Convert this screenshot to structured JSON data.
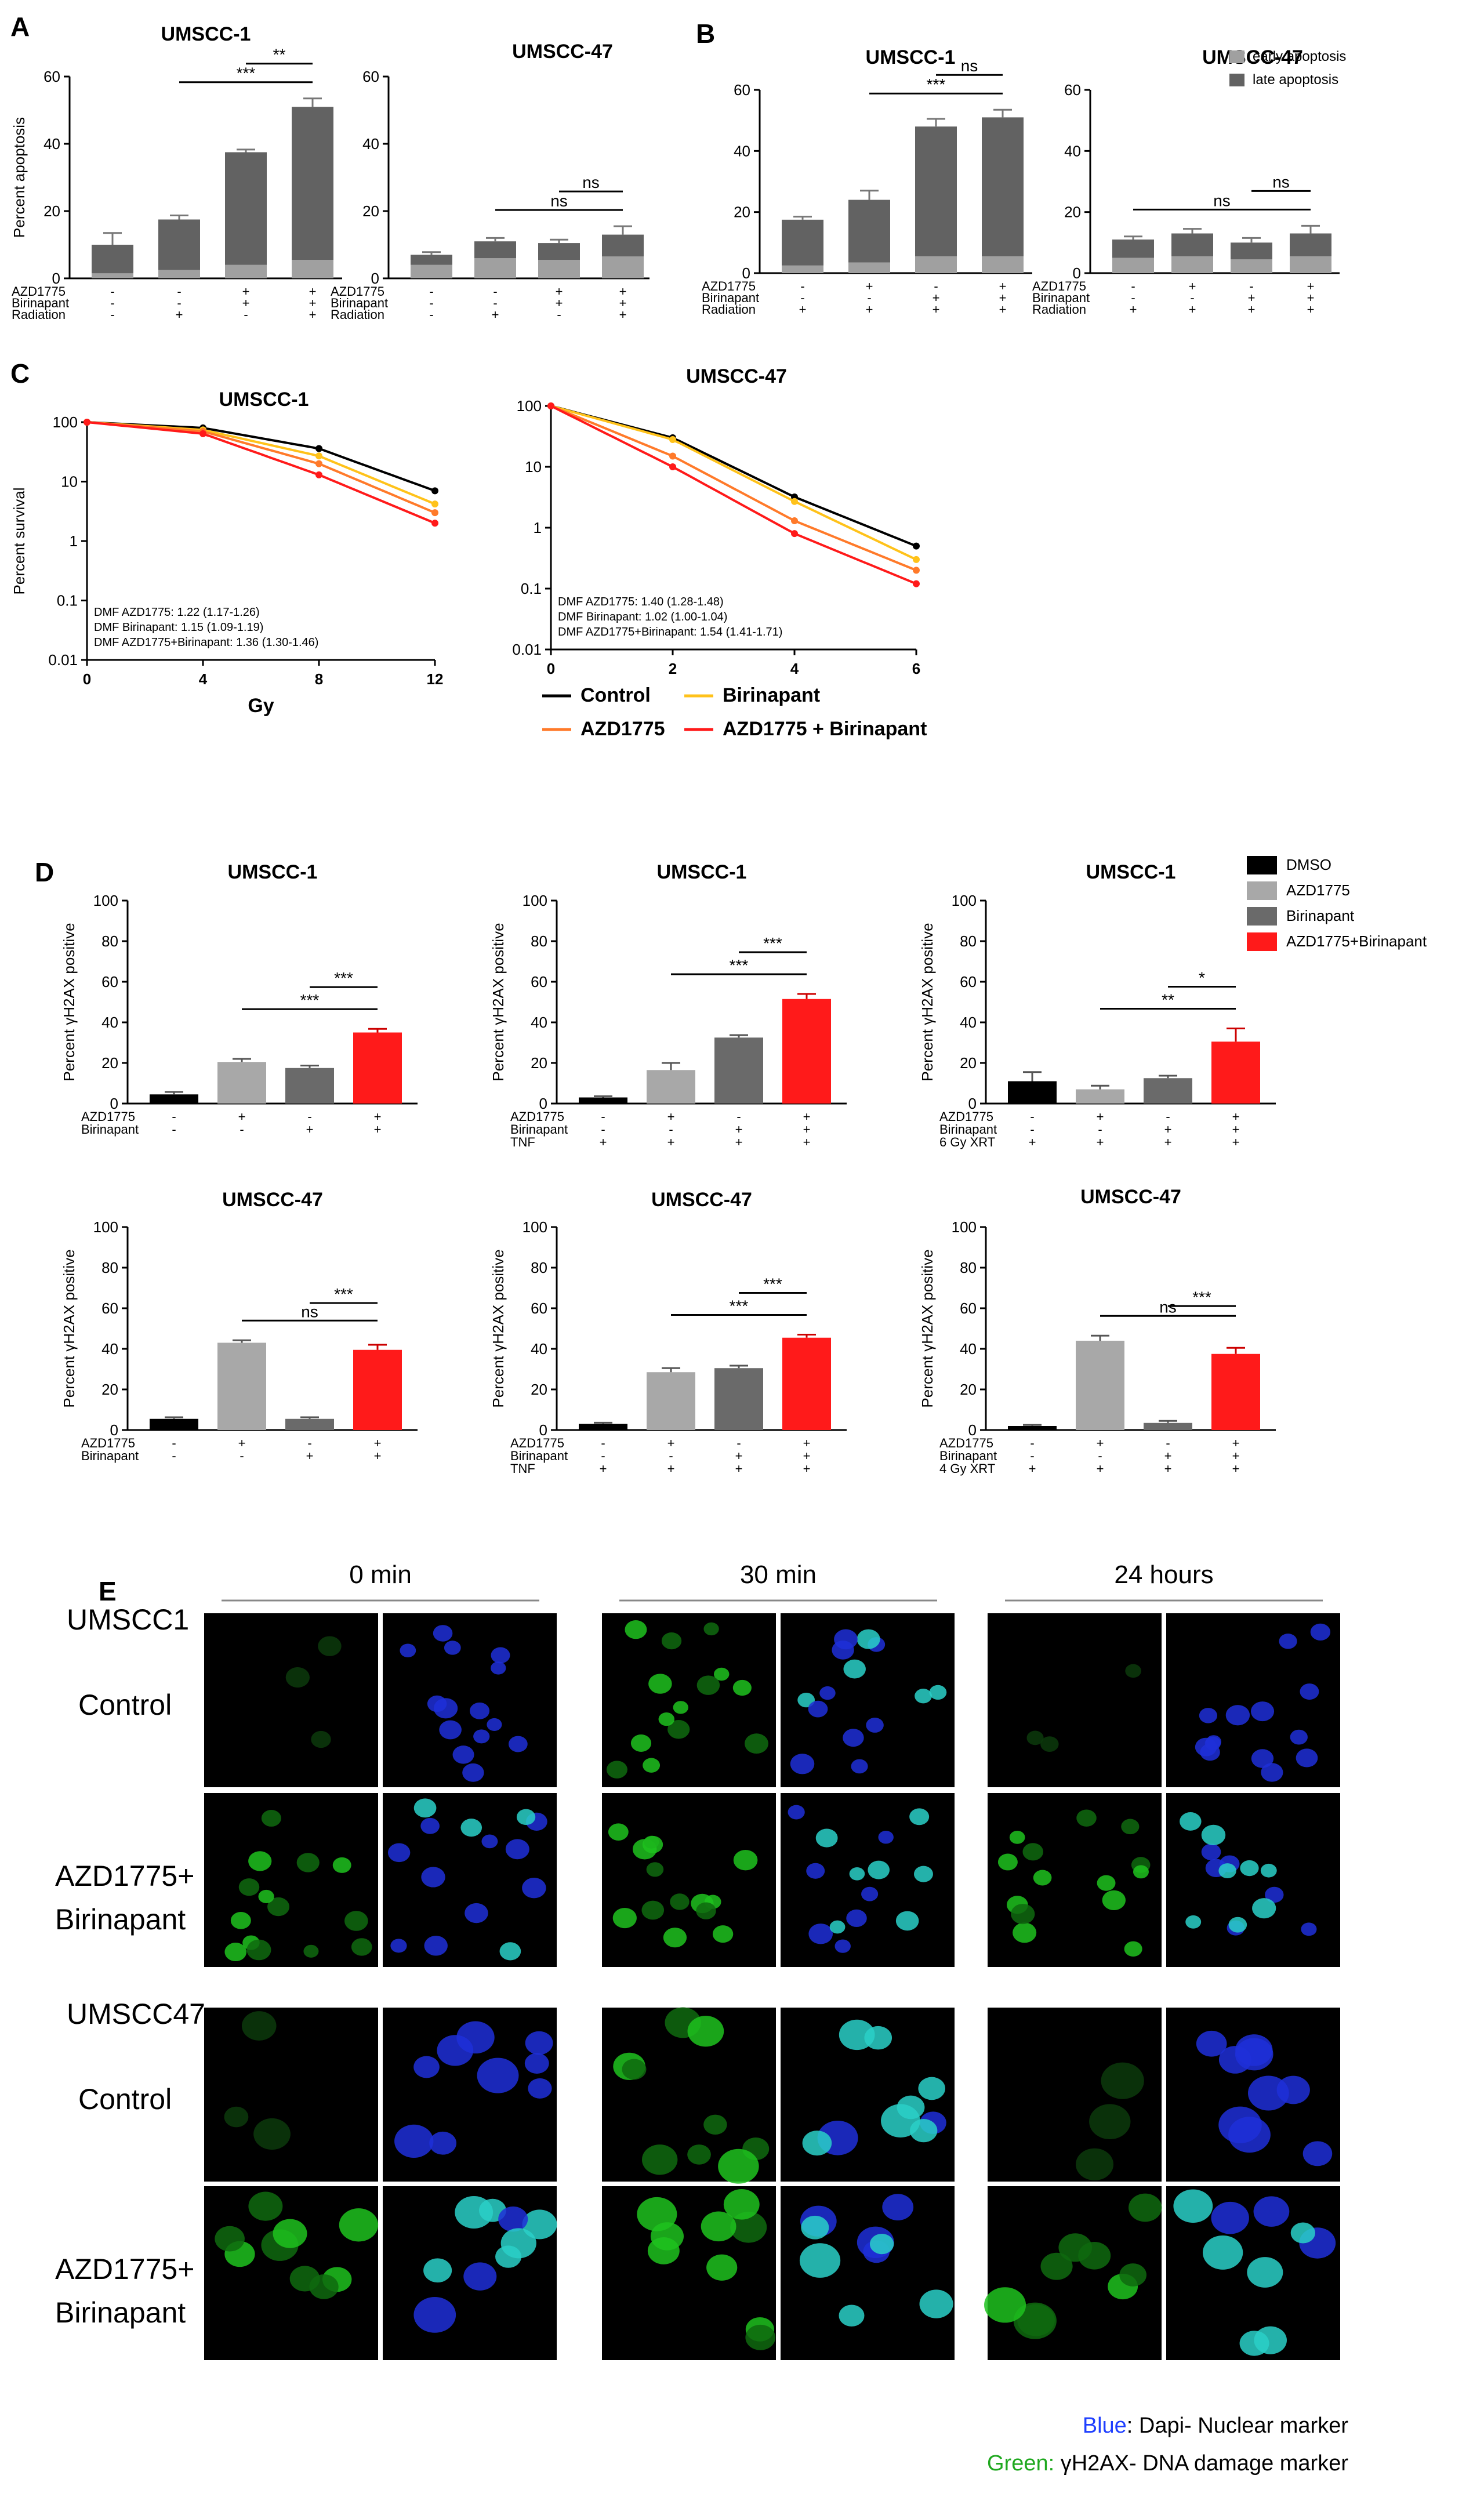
{
  "panels": {
    "A": "A",
    "B": "B",
    "C": "C",
    "D": "D",
    "E": "E"
  },
  "colors": {
    "early": "#a0a0a0",
    "late": "#626262",
    "dmso": "#000000",
    "azd": "#a8a8a8",
    "bir": "#6a6a6a",
    "combo": "#ff1a1a",
    "control_line": "#000000",
    "azd_line": "#ff7a2a",
    "bir_line": "#ffc21a",
    "combo_line": "#ff1a1a",
    "blue_text": "#1f3fff",
    "green_text": "#1fa81f"
  },
  "chart_data": [
    {
      "id": "A1",
      "type": "bar",
      "stacked": true,
      "title": "UMSCC-1",
      "ylabel": "Percent apoptosis",
      "ylim": [
        0,
        60
      ],
      "yticks": [
        0,
        20,
        40,
        60
      ],
      "treatments": [
        {
          "name": "AZD1775",
          "values": [
            "-",
            "-",
            "+",
            "+"
          ]
        },
        {
          "name": "Birinapant",
          "values": [
            "-",
            "-",
            "+",
            "+"
          ]
        },
        {
          "name": "Radiation",
          "values": [
            "-",
            "+",
            "-",
            "+"
          ]
        }
      ],
      "series": [
        {
          "name": "early apoptosis",
          "values": [
            1.5,
            2.5,
            4,
            5.5
          ]
        },
        {
          "name": "late apoptosis",
          "values": [
            8.5,
            15,
            33.5,
            45.5
          ]
        }
      ],
      "errors": [
        3.5,
        1.2,
        0.8,
        2.5
      ],
      "significance": [
        {
          "label": "***",
          "from": 1,
          "to": 3
        },
        {
          "label": "**",
          "from": 2,
          "to": 3
        }
      ]
    },
    {
      "id": "A2",
      "type": "bar",
      "stacked": true,
      "title": "UMSCC-47",
      "ylabel": "",
      "ylim": [
        0,
        60
      ],
      "yticks": [
        0,
        20,
        40,
        60
      ],
      "treatments": [
        {
          "name": "AZD1775",
          "values": [
            "-",
            "-",
            "+",
            "+"
          ]
        },
        {
          "name": "Birinapant",
          "values": [
            "-",
            "-",
            "+",
            "+"
          ]
        },
        {
          "name": "Radiation",
          "values": [
            "-",
            "+",
            "-",
            "+"
          ]
        }
      ],
      "series": [
        {
          "name": "early apoptosis",
          "values": [
            4,
            6,
            5.5,
            6.5
          ]
        },
        {
          "name": "late apoptosis",
          "values": [
            3,
            5,
            5,
            6.5
          ]
        }
      ],
      "errors": [
        0.8,
        1.0,
        1.0,
        2.5
      ],
      "significance": [
        {
          "label": "ns",
          "from": 1,
          "to": 3
        },
        {
          "label": "ns",
          "from": 2,
          "to": 3
        }
      ]
    },
    {
      "id": "B1",
      "type": "bar",
      "stacked": true,
      "title": "UMSCC-1",
      "ylabel": "",
      "ylim": [
        0,
        60
      ],
      "yticks": [
        0,
        20,
        40,
        60
      ],
      "treatments": [
        {
          "name": "AZD1775",
          "values": [
            "-",
            "+",
            "-",
            "+"
          ]
        },
        {
          "name": "Birinapant",
          "values": [
            "-",
            "-",
            "+",
            "+"
          ]
        },
        {
          "name": "Radiation",
          "values": [
            "+",
            "+",
            "+",
            "+"
          ]
        }
      ],
      "series": [
        {
          "name": "early apoptosis",
          "values": [
            2.5,
            3.5,
            5.5,
            5.5
          ]
        },
        {
          "name": "late apoptosis",
          "values": [
            15,
            20.5,
            42.5,
            45.5
          ]
        }
      ],
      "errors": [
        1.0,
        3.0,
        2.5,
        2.5
      ],
      "significance": [
        {
          "label": "***",
          "from": 1,
          "to": 3
        },
        {
          "label": "ns",
          "from": 2,
          "to": 3
        }
      ]
    },
    {
      "id": "B2",
      "type": "bar",
      "stacked": true,
      "title": "UMSCC-47",
      "ylabel": "",
      "ylim": [
        0,
        60
      ],
      "yticks": [
        0,
        20,
        40,
        60
      ],
      "legend": [
        "early apoptosis",
        "late apoptosis"
      ],
      "treatments": [
        {
          "name": "AZD1775",
          "values": [
            "-",
            "+",
            "-",
            "+"
          ]
        },
        {
          "name": "Birinapant",
          "values": [
            "-",
            "-",
            "+",
            "+"
          ]
        },
        {
          "name": "Radiation",
          "values": [
            "+",
            "+",
            "+",
            "+"
          ]
        }
      ],
      "series": [
        {
          "name": "early apoptosis",
          "values": [
            5,
            5.5,
            4.5,
            5.5
          ]
        },
        {
          "name": "late apoptosis",
          "values": [
            6,
            7.5,
            5.5,
            7.5
          ]
        }
      ],
      "errors": [
        1.0,
        1.5,
        1.5,
        2.5
      ],
      "significance": [
        {
          "label": "ns",
          "from": 0,
          "to": 3
        },
        {
          "label": "ns",
          "from": 2,
          "to": 3
        }
      ]
    },
    {
      "id": "C1",
      "type": "line",
      "title": "UMSCC-1",
      "xlabel": "Gy",
      "ylabel": "Percent survival",
      "log_y": true,
      "xlim": [
        0,
        12
      ],
      "ylim": [
        0.01,
        100
      ],
      "xticks": [
        0,
        4,
        8,
        12
      ],
      "yticks": [
        100,
        10,
        1,
        0.1,
        0.01
      ],
      "x": [
        0,
        4,
        8,
        12
      ],
      "series": [
        {
          "name": "Control",
          "values": [
            100,
            80,
            36,
            7
          ]
        },
        {
          "name": "Birinapant",
          "values": [
            100,
            74,
            27,
            4.2
          ]
        },
        {
          "name": "AZD1775",
          "values": [
            100,
            70,
            20,
            3
          ]
        },
        {
          "name": "AZD1775 + Birinapant",
          "values": [
            100,
            64,
            13,
            2
          ]
        }
      ],
      "annotations": [
        "DMF AZD1775: 1.22 (1.17-1.26)",
        "DMF Birinapant: 1.15 (1.09-1.19)",
        "DMF AZD1775+Birinapant: 1.36 (1.30-1.46)"
      ]
    },
    {
      "id": "C2",
      "type": "line",
      "title": "UMSCC-47",
      "xlabel": "",
      "ylabel": "",
      "log_y": true,
      "xlim": [
        0,
        6
      ],
      "ylim": [
        0.01,
        100
      ],
      "xticks": [
        0,
        2,
        4,
        6
      ],
      "yticks": [
        100,
        10,
        1,
        0.1,
        0.01
      ],
      "x": [
        0,
        2,
        4,
        6
      ],
      "series": [
        {
          "name": "Control",
          "values": [
            100,
            30,
            3.2,
            0.5
          ]
        },
        {
          "name": "Birinapant",
          "values": [
            100,
            28,
            2.7,
            0.3
          ]
        },
        {
          "name": "AZD1775",
          "values": [
            100,
            15,
            1.3,
            0.2
          ]
        },
        {
          "name": "AZD1775 + Birinapant",
          "values": [
            100,
            10,
            0.8,
            0.12
          ]
        }
      ],
      "annotations": [
        "DMF AZD1775: 1.40 (1.28-1.48)",
        "DMF Birinapant: 1.02 (1.00-1.04)",
        "DMF AZD1775+Birinapant: 1.54 (1.41-1.71)"
      ],
      "legend": [
        "Control",
        "Birinapant",
        "AZD1775",
        "AZD1775 + Birinapant"
      ]
    },
    {
      "id": "D1",
      "type": "bar",
      "title": "UMSCC-1",
      "ylabel": "Percent γH2AX positive",
      "ylim": [
        0,
        100
      ],
      "yticks": [
        0,
        20,
        40,
        60,
        80,
        100
      ],
      "categories": [
        "DMSO",
        "AZD1775",
        "Birinapant",
        "AZD1775+Birinapant"
      ],
      "values": [
        4.5,
        20.5,
        17.5,
        35
      ],
      "errors": [
        1.2,
        1.5,
        1.2,
        1.8
      ],
      "treatments": [
        {
          "name": "AZD1775",
          "values": [
            "-",
            "+",
            "-",
            "+"
          ]
        },
        {
          "name": "Birinapant",
          "values": [
            "-",
            "-",
            "+",
            "+"
          ]
        }
      ],
      "significance": [
        {
          "label": "***",
          "from": 1,
          "to": 3
        },
        {
          "label": "***",
          "from": 2,
          "to": 3
        }
      ]
    },
    {
      "id": "D2",
      "type": "bar",
      "title": "UMSCC-1",
      "ylabel": "Percent γH2AX positive",
      "ylim": [
        0,
        100
      ],
      "yticks": [
        0,
        20,
        40,
        60,
        80,
        100
      ],
      "categories": [
        "DMSO",
        "AZD1775",
        "Birinapant",
        "AZD1775+Birinapant"
      ],
      "values": [
        3,
        16.5,
        32.5,
        51.5
      ],
      "errors": [
        0.6,
        3.5,
        1.2,
        2.5
      ],
      "treatments": [
        {
          "name": "AZD1775",
          "values": [
            "-",
            "+",
            "-",
            "+"
          ]
        },
        {
          "name": "Birinapant",
          "values": [
            "-",
            "-",
            "+",
            "+"
          ]
        },
        {
          "name": "TNF",
          "values": [
            "+",
            "+",
            "+",
            "+"
          ]
        }
      ],
      "significance": [
        {
          "label": "***",
          "from": 1,
          "to": 3
        },
        {
          "label": "***",
          "from": 2,
          "to": 3
        }
      ]
    },
    {
      "id": "D3",
      "type": "bar",
      "title": "UMSCC-1",
      "ylabel": "Percent γH2AX positive",
      "ylim": [
        0,
        100
      ],
      "yticks": [
        0,
        20,
        40,
        60,
        80,
        100
      ],
      "categories": [
        "DMSO",
        "AZD1775",
        "Birinapant",
        "AZD1775+Birinapant"
      ],
      "values": [
        11,
        7,
        12.5,
        30.5
      ],
      "errors": [
        4.5,
        1.8,
        1.2,
        6.5
      ],
      "treatments": [
        {
          "name": "AZD1775",
          "values": [
            "-",
            "+",
            "-",
            "+"
          ]
        },
        {
          "name": "Birinapant",
          "values": [
            "-",
            "-",
            "+",
            "+"
          ]
        },
        {
          "name": "6 Gy XRT",
          "values": [
            "+",
            "+",
            "+",
            "+"
          ]
        }
      ],
      "legend": [
        "DMSO",
        "AZD1775",
        "Birinapant",
        "AZD1775+Birinapant"
      ],
      "significance": [
        {
          "label": "**",
          "from": 1,
          "to": 3
        },
        {
          "label": "*",
          "from": 2,
          "to": 3
        }
      ]
    },
    {
      "id": "D4",
      "type": "bar",
      "title": "UMSCC-47",
      "ylabel": "Percent γH2AX positive",
      "ylim": [
        0,
        100
      ],
      "yticks": [
        0,
        20,
        40,
        60,
        80,
        100
      ],
      "categories": [
        "DMSO",
        "AZD1775",
        "Birinapant",
        "AZD1775+Birinapant"
      ],
      "values": [
        5.5,
        43,
        5.5,
        39.5
      ],
      "errors": [
        0.8,
        1.2,
        0.8,
        2.5
      ],
      "treatments": [
        {
          "name": "AZD1775",
          "values": [
            "-",
            "+",
            "-",
            "+"
          ]
        },
        {
          "name": "Birinapant",
          "values": [
            "-",
            "-",
            "+",
            "+"
          ]
        }
      ],
      "significance": [
        {
          "label": "ns",
          "from": 1,
          "to": 3
        },
        {
          "label": "***",
          "from": 2,
          "to": 3
        }
      ]
    },
    {
      "id": "D5",
      "type": "bar",
      "title": "UMSCC-47",
      "ylabel": "Percent γH2AX positive",
      "ylim": [
        0,
        100
      ],
      "yticks": [
        0,
        20,
        40,
        60,
        80,
        100
      ],
      "categories": [
        "DMSO",
        "AZD1775",
        "Birinapant",
        "AZD1775+Birinapant"
      ],
      "values": [
        3,
        28.5,
        30.5,
        45.5
      ],
      "errors": [
        0.6,
        2.0,
        1.2,
        1.5
      ],
      "treatments": [
        {
          "name": "AZD1775",
          "values": [
            "-",
            "+",
            "-",
            "+"
          ]
        },
        {
          "name": "Birinapant",
          "values": [
            "-",
            "-",
            "+",
            "+"
          ]
        },
        {
          "name": "TNF",
          "values": [
            "+",
            "+",
            "+",
            "+"
          ]
        }
      ],
      "significance": [
        {
          "label": "***",
          "from": 1,
          "to": 3
        },
        {
          "label": "***",
          "from": 2,
          "to": 3
        }
      ]
    },
    {
      "id": "D6",
      "type": "bar",
      "title": "UMSCC-47",
      "ylabel": "Percent γH2AX positive",
      "ylim": [
        0,
        100
      ],
      "yticks": [
        0,
        20,
        40,
        60,
        80,
        100
      ],
      "categories": [
        "DMSO",
        "AZD1775",
        "Birinapant",
        "AZD1775+Birinapant"
      ],
      "values": [
        2,
        44,
        3.5,
        37.5
      ],
      "errors": [
        0.5,
        2.5,
        1.0,
        3.0
      ],
      "treatments": [
        {
          "name": "AZD1775",
          "values": [
            "-",
            "+",
            "-",
            "+"
          ]
        },
        {
          "name": "Birinapant",
          "values": [
            "-",
            "-",
            "+",
            "+"
          ]
        },
        {
          "name": "4 Gy XRT",
          "values": [
            "+",
            "+",
            "+",
            "+"
          ]
        }
      ],
      "significance": [
        {
          "label": "ns",
          "from": 1,
          "to": 3
        },
        {
          "label": "***",
          "from": 2,
          "to": 3
        }
      ]
    }
  ],
  "microscopy": {
    "columns": [
      "0 min",
      "30 min",
      "24 hours"
    ],
    "rows": [
      {
        "cell_line": "UMSCC1",
        "condition": "Control"
      },
      {
        "cell_line": "",
        "condition": "AZD1775+ Birinapant"
      },
      {
        "cell_line": "UMSCC47",
        "condition": "Control"
      },
      {
        "cell_line": "",
        "condition": "AZD1775+ Birinapant"
      }
    ],
    "legend_blue_label": "Blue",
    "legend_blue_text": ": Dapi- Nuclear marker",
    "legend_green_label": "Green:",
    "legend_green_text": " γH2AX- DNA damage marker"
  }
}
